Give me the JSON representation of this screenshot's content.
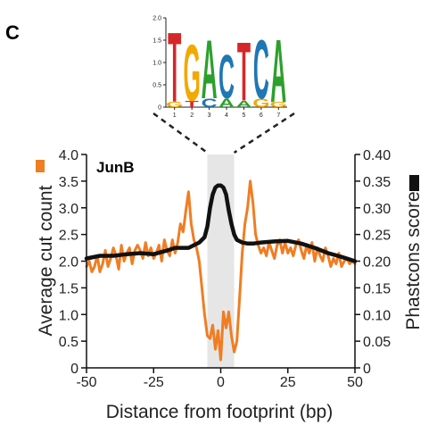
{
  "panel_label": "C",
  "chart_data": {
    "type": "line",
    "title": "JunB",
    "xlabel": "Distance from footprint (bp)",
    "ylabel_left": "Average cut count",
    "ylabel_right": "Phastcons score",
    "xlim": [
      -50,
      50
    ],
    "ylim_left": [
      0,
      4.0
    ],
    "ylim_right": [
      0,
      0.4
    ],
    "x_ticks": [
      "-50",
      "-25",
      "0",
      "25",
      "50"
    ],
    "x_tick_values": [
      -50,
      -25,
      0,
      25,
      50
    ],
    "y_left_ticks": [
      "0",
      "0.5",
      "1.0",
      "1.5",
      "2.0",
      "2.5",
      "3.0",
      "3.5",
      "4.0"
    ],
    "y_left_tick_values": [
      0,
      0.5,
      1.0,
      1.5,
      2.0,
      2.5,
      3.0,
      3.5,
      4.0
    ],
    "y_right_ticks": [
      "0",
      "0.05",
      "0.10",
      "0.15",
      "0.20",
      "0.25",
      "0.30",
      "0.35",
      "0.40"
    ],
    "y_right_tick_values": [
      0,
      0.05,
      0.1,
      0.15,
      0.2,
      0.25,
      0.3,
      0.35,
      0.4
    ],
    "footprint_region": [
      -5,
      5
    ],
    "colors": {
      "cut_count": "#F07D22",
      "phastcons": "#111111",
      "footprint": "#E6E6E6"
    },
    "series": [
      {
        "axis": "left",
        "x": [
          -50,
          -49,
          -48,
          -47,
          -46,
          -45,
          -44,
          -43,
          -42,
          -41,
          -40,
          -39,
          -38,
          -37,
          -36,
          -35,
          -34,
          -33,
          -32,
          -31,
          -30,
          -29,
          -28,
          -27,
          -26,
          -25,
          -24,
          -23,
          -22,
          -21,
          -20,
          -19,
          -18,
          -17,
          -16,
          -15,
          -14,
          -13,
          -12,
          -11,
          -10,
          -9,
          -8,
          -7,
          -6,
          -5,
          -4,
          -3,
          -2,
          -1,
          0,
          1,
          2,
          3,
          4,
          5,
          6,
          7,
          8,
          9,
          10,
          11,
          12,
          13,
          14,
          15,
          16,
          17,
          18,
          19,
          20,
          21,
          22,
          23,
          24,
          25,
          26,
          27,
          28,
          29,
          30,
          31,
          32,
          33,
          34,
          35,
          36,
          37,
          38,
          39,
          40,
          41,
          42,
          43,
          44,
          45,
          46,
          47,
          48,
          49,
          50
        ],
        "y": [
          1.9,
          2.0,
          1.8,
          1.9,
          2.1,
          1.8,
          1.95,
          2.2,
          1.9,
          2.05,
          2.25,
          2.1,
          1.85,
          2.3,
          2.0,
          2.15,
          2.25,
          1.95,
          2.2,
          2.3,
          2.2,
          2.05,
          2.35,
          2.1,
          2.25,
          2.05,
          2.15,
          2.3,
          2.0,
          2.4,
          2.2,
          2.1,
          2.4,
          2.15,
          2.35,
          2.7,
          2.55,
          2.95,
          3.3,
          2.7,
          2.4,
          2.25,
          2.0,
          1.5,
          1.0,
          0.6,
          0.55,
          0.8,
          0.35,
          0.7,
          0.15,
          1.05,
          0.75,
          1.05,
          0.6,
          0.3,
          0.5,
          1.3,
          2.15,
          2.7,
          3.0,
          3.5,
          3.1,
          2.5,
          2.3,
          2.15,
          2.25,
          2.1,
          2.35,
          2.2,
          2.05,
          2.3,
          2.4,
          2.15,
          2.35,
          2.15,
          2.25,
          2.1,
          2.3,
          2.4,
          2.2,
          2.05,
          2.3,
          2.15,
          2.35,
          2.0,
          2.25,
          2.1,
          2.0,
          2.25,
          2.1,
          1.9,
          2.05,
          1.95,
          2.15,
          1.9,
          2.0,
          2.05,
          1.95,
          2.0,
          1.95
        ]
      },
      {
        "axis": "right",
        "x": [
          -50,
          -45,
          -40,
          -35,
          -30,
          -25,
          -20,
          -17,
          -14,
          -12,
          -10,
          -8,
          -6,
          -5,
          -4,
          -3,
          -2,
          -1,
          0,
          1,
          2,
          3,
          4,
          5,
          6,
          8,
          10,
          12,
          15,
          20,
          25,
          30,
          35,
          40,
          45,
          50
        ],
        "y": [
          0.205,
          0.21,
          0.21,
          0.213,
          0.215,
          0.213,
          0.22,
          0.225,
          0.225,
          0.225,
          0.23,
          0.235,
          0.245,
          0.265,
          0.3,
          0.325,
          0.338,
          0.342,
          0.342,
          0.338,
          0.325,
          0.295,
          0.27,
          0.25,
          0.24,
          0.235,
          0.233,
          0.233,
          0.235,
          0.237,
          0.238,
          0.233,
          0.225,
          0.215,
          0.208,
          0.2
        ]
      }
    ]
  },
  "motif_logo": {
    "y_ticks": [
      "0",
      "0.5",
      "1.0",
      "1.5",
      "2.0"
    ],
    "x_ticks": [
      "1",
      "2",
      "3",
      "4",
      "5",
      "6",
      "7"
    ],
    "letters": [
      [
        {
          "letter": "T",
          "color": "#D62728",
          "h": 1.6
        },
        {
          "letter": "G",
          "color": "#F2A900",
          "h": 0.12
        }
      ],
      [
        {
          "letter": "G",
          "color": "#F2A900",
          "h": 1.3
        },
        {
          "letter": "T",
          "color": "#D62728",
          "h": 0.15
        }
      ],
      [
        {
          "letter": "A",
          "color": "#2CA02C",
          "h": 1.35
        },
        {
          "letter": "C",
          "color": "#1F77B4",
          "h": 0.2
        }
      ],
      [
        {
          "letter": "C",
          "color": "#1F77B4",
          "h": 1.0
        },
        {
          "letter": "A",
          "color": "#2CA02C",
          "h": 0.2
        }
      ],
      [
        {
          "letter": "T",
          "color": "#D62728",
          "h": 1.35
        },
        {
          "letter": "A",
          "color": "#2CA02C",
          "h": 0.15
        }
      ],
      [
        {
          "letter": "C",
          "color": "#1F77B4",
          "h": 1.35
        },
        {
          "letter": "G",
          "color": "#F2A900",
          "h": 0.2
        }
      ],
      [
        {
          "letter": "A",
          "color": "#2CA02C",
          "h": 1.45
        },
        {
          "letter": "G",
          "color": "#F2A900",
          "h": 0.12
        }
      ]
    ]
  }
}
